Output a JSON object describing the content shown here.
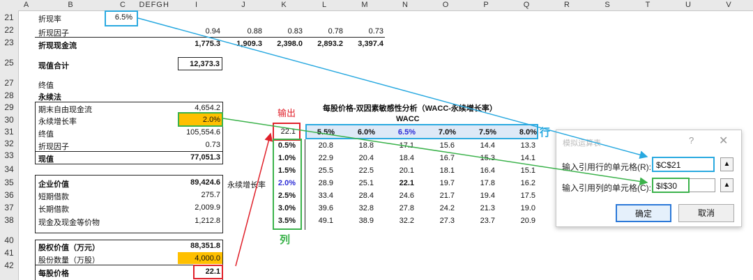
{
  "columns": [
    "A",
    "B",
    "C",
    "D",
    "E",
    "F",
    "G",
    "H",
    "I",
    "J",
    "K",
    "L",
    "M",
    "N",
    "O",
    "P",
    "Q",
    "R",
    "S",
    "T",
    "U",
    "V"
  ],
  "rows": [
    "21",
    "22",
    "23",
    "25",
    "27",
    "28",
    "29",
    "30",
    "31",
    "32",
    "33",
    "34",
    "35",
    "36",
    "37",
    "38",
    "40",
    "41",
    "42"
  ],
  "discount": {
    "label_rate": "折现率",
    "rate": "6.5%",
    "label_factor": "折现因子",
    "factors": [
      "0.94",
      "0.88",
      "0.83",
      "0.78",
      "0.73"
    ],
    "label_flow": "折现现金流",
    "flows": [
      "1,775.3",
      "1,909.3",
      "2,398.0",
      "2,893.2",
      "3,397.4"
    ],
    "label_pv_total": "现值合计",
    "pv_total": "12,373.3"
  },
  "terminal": {
    "title": "终值",
    "method": "永续法",
    "items": [
      {
        "label": "期末自由现金流",
        "value": "4,654.2",
        "bold": false
      },
      {
        "label": "永续增长率",
        "value": "2.0%",
        "bold": false
      },
      {
        "label": "终值",
        "value": "105,554.6",
        "bold": false
      },
      {
        "label": "折现因子",
        "value": "0.73",
        "bold": false
      },
      {
        "label": "现值",
        "value": "77,051.3",
        "bold": true
      }
    ],
    "items2": [
      {
        "label": "企业价值",
        "value": "89,424.6",
        "bold": true
      },
      {
        "label": "短期借款",
        "value": "275.7",
        "bold": false
      },
      {
        "label": "长期借款",
        "value": "2,009.9",
        "bold": false
      },
      {
        "label": "现金及现金等价物",
        "value": "1,212.8",
        "bold": false
      }
    ],
    "equity_label": "股权价值（万元）",
    "equity_value": "88,351.8",
    "shares_label": "股份数量（万股）",
    "shares_value": "4,000.0",
    "price_label": "每股价格",
    "price_value": "22.1"
  },
  "sensitivity": {
    "title": "每股价格-双因素敏感性分析（WACC-永续增长率）",
    "wacc_label": "WACC",
    "growth_label": "永续增长率",
    "output_label": "输出",
    "row_annot": "行",
    "col_annot": "列",
    "corner": "22.1",
    "wacc": [
      "5.5%",
      "6.0%",
      "6.5%",
      "7.0%",
      "7.5%",
      "8.0%"
    ],
    "growth": [
      "0.5%",
      "1.0%",
      "1.5%",
      "2.0%",
      "2.5%",
      "3.0%",
      "3.5%"
    ],
    "values": [
      [
        "20.8",
        "18.8",
        "17.1",
        "15.6",
        "14.4",
        "13.3"
      ],
      [
        "22.9",
        "20.4",
        "18.4",
        "16.7",
        "15.3",
        "14.1"
      ],
      [
        "25.5",
        "22.5",
        "20.1",
        "18.1",
        "16.4",
        "15.1"
      ],
      [
        "28.9",
        "25.1",
        "22.1",
        "19.7",
        "17.8",
        "16.2"
      ],
      [
        "33.4",
        "28.4",
        "24.6",
        "21.7",
        "19.4",
        "17.5"
      ],
      [
        "39.6",
        "32.8",
        "27.8",
        "24.2",
        "21.3",
        "19.0"
      ],
      [
        "49.1",
        "38.9",
        "32.2",
        "27.3",
        "23.7",
        "20.9"
      ]
    ]
  },
  "dialog": {
    "title": "模拟运算表",
    "help": "?",
    "close": "✕",
    "row_label": "输入引用行的单元格(R):",
    "row_value": "$C$21",
    "col_label": "输入引用列的单元格(C):",
    "col_value": "$I$30",
    "ok": "确定",
    "cancel": "取消",
    "pick_icon": "collapse-icon"
  },
  "colors": {
    "header_bg": "#e9e9e9",
    "orange": "#ffc000",
    "blue_box": "#29a9e0",
    "green_box": "#3bb24b",
    "red_box": "#e0202a",
    "band": "#dde9f7"
  }
}
